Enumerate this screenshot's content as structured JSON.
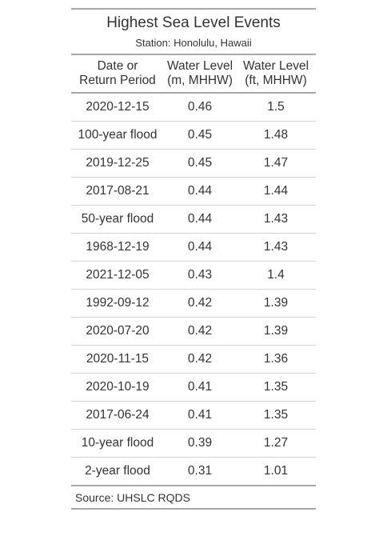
{
  "table": {
    "title": "Highest Sea Level Events",
    "subtitle": "Station: Honolulu, Hawaii",
    "columns": [
      "Date or\nReturn Period",
      "Water Level\n(m, MHHW)",
      "Water Level\n(ft, MHHW)"
    ],
    "rows": [
      [
        "2020-12-15",
        "0.46",
        "1.5"
      ],
      [
        "100-year flood",
        "0.45",
        "1.48"
      ],
      [
        "2019-12-25",
        "0.45",
        "1.47"
      ],
      [
        "2017-08-21",
        "0.44",
        "1.44"
      ],
      [
        "50-year flood",
        "0.44",
        "1.43"
      ],
      [
        "1968-12-19",
        "0.44",
        "1.43"
      ],
      [
        "2021-12-05",
        "0.43",
        "1.4"
      ],
      [
        "1992-09-12",
        "0.42",
        "1.39"
      ],
      [
        "2020-07-20",
        "0.42",
        "1.39"
      ],
      [
        "2020-11-15",
        "0.42",
        "1.36"
      ],
      [
        "2020-10-19",
        "0.41",
        "1.35"
      ],
      [
        "2017-06-24",
        "0.41",
        "1.35"
      ],
      [
        "10-year flood",
        "0.39",
        "1.27"
      ],
      [
        "2-year flood",
        "0.31",
        "1.01"
      ]
    ],
    "source": "Source: UHSLC RQDS"
  }
}
